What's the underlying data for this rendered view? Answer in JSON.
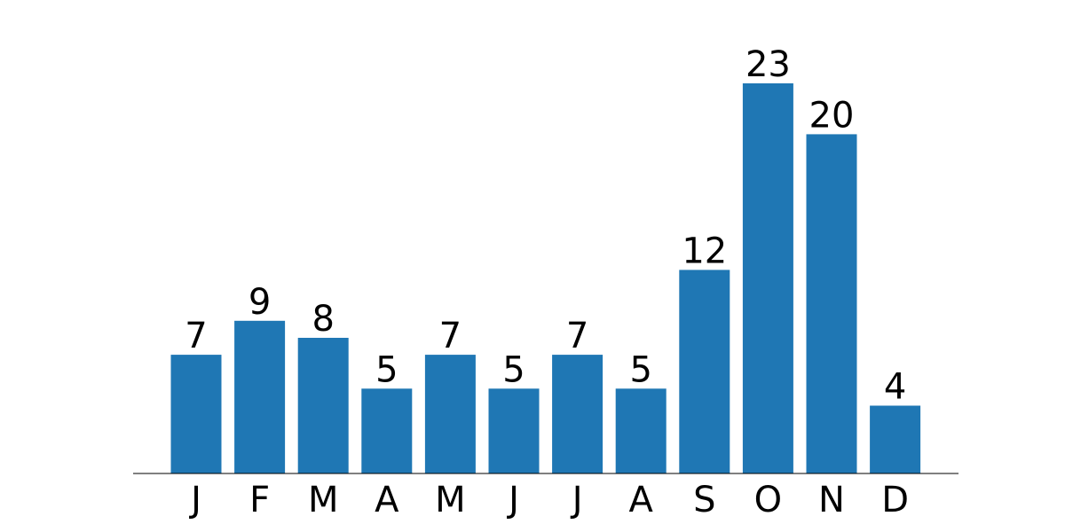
{
  "chart_data": {
    "type": "bar",
    "categories": [
      "J",
      "F",
      "M",
      "A",
      "M",
      "J",
      "J",
      "A",
      "S",
      "O",
      "N",
      "D"
    ],
    "values": [
      7,
      9,
      8,
      5,
      7,
      5,
      7,
      5,
      12,
      23,
      20,
      4
    ],
    "data_labels": [
      "7",
      "9",
      "8",
      "5",
      "7",
      "5",
      "7",
      "5",
      "12",
      "23",
      "20",
      "4"
    ],
    "title": "",
    "xlabel": "",
    "ylabel": "",
    "ylim": [
      0,
      23
    ],
    "grid": false,
    "y_axis_visible": false,
    "bar_color": "#1f77b4",
    "axis_color": "#000000"
  }
}
